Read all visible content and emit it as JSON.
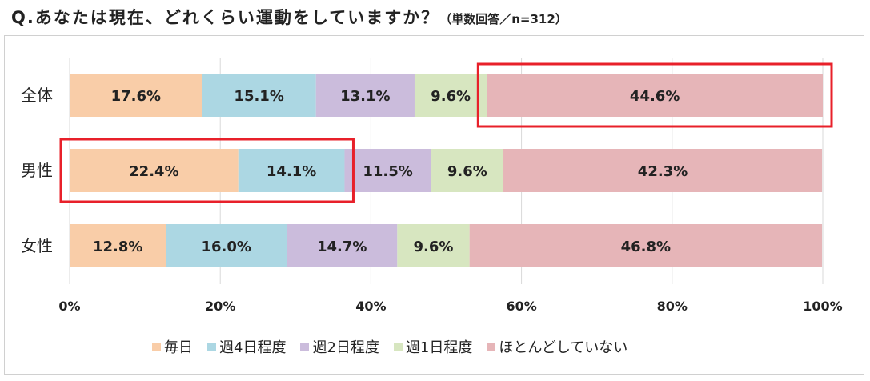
{
  "title": "Q.あなたは現在、どれくらい運動をしていますか？",
  "subtitle": "（単数回答／n=312）",
  "colors": {
    "series": [
      "#f9cda8",
      "#acd7e3",
      "#cbbcdc",
      "#d7e6c0",
      "#e6b5b8"
    ],
    "highlight": "#e8202a",
    "grid": "#d9d9d9",
    "text": "#222222"
  },
  "chart_data": {
    "type": "bar",
    "orientation": "horizontal",
    "stacked": true,
    "categories": [
      "全体",
      "男性",
      "女性"
    ],
    "series": [
      {
        "name": "毎日",
        "values": [
          17.6,
          22.4,
          12.8
        ]
      },
      {
        "name": "週4日程度",
        "values": [
          15.1,
          14.1,
          16.0
        ]
      },
      {
        "name": "週2日程度",
        "values": [
          13.1,
          11.5,
          14.7
        ]
      },
      {
        "name": "週1日程度",
        "values": [
          9.6,
          9.6,
          9.6
        ]
      },
      {
        "name": "ほとんどしていない",
        "values": [
          44.6,
          42.3,
          46.8
        ]
      }
    ],
    "xlim": [
      0,
      100
    ],
    "x_ticks": [
      "0%",
      "20%",
      "40%",
      "60%",
      "80%",
      "100%"
    ],
    "grid": true,
    "legend": "bottom",
    "highlights": [
      {
        "category": "全体",
        "series": [
          "ほとんどしていない"
        ]
      },
      {
        "category": "男性",
        "series": [
          "毎日",
          "週4日程度"
        ]
      }
    ]
  }
}
